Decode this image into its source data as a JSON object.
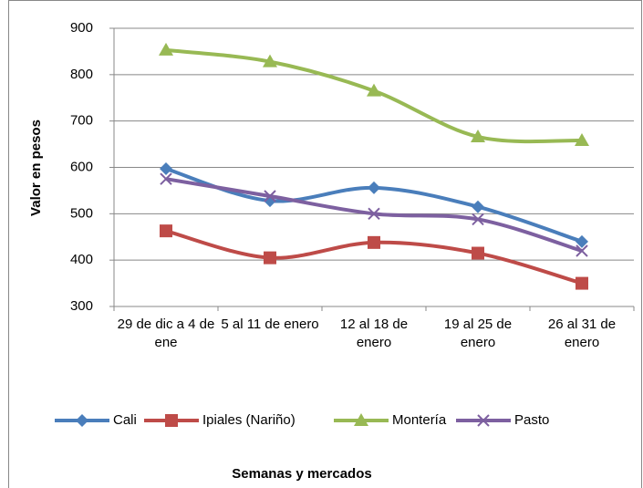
{
  "chart_data": {
    "type": "line",
    "y_label": "Valor en pesos",
    "x_label": "Semanas y mercados",
    "categories": [
      "29 de dic a 4 de ene",
      "5 al 11 de enero",
      "12 al 18 de enero",
      "19 al 25 de enero",
      "26 al 31 de enero"
    ],
    "series": [
      {
        "name": "Cali",
        "color": "#4a7ebb",
        "marker": "diamond",
        "values": [
          597,
          528,
          556,
          515,
          440
        ]
      },
      {
        "name": "Ipiales (Nariño)",
        "color": "#be4b48",
        "marker": "square",
        "values": [
          463,
          405,
          438,
          415,
          350
        ]
      },
      {
        "name": "Montería",
        "color": "#98b954",
        "marker": "triangle",
        "values": [
          853,
          828,
          765,
          666,
          658
        ]
      },
      {
        "name": "Pasto",
        "color": "#7d60a0",
        "marker": "x",
        "values": [
          575,
          538,
          500,
          488,
          420
        ]
      }
    ],
    "ylim": [
      300,
      900
    ],
    "yticks": [
      300,
      400,
      500,
      600,
      700,
      800,
      900
    ],
    "grid": true,
    "smooth": true,
    "legend": "bottom"
  }
}
